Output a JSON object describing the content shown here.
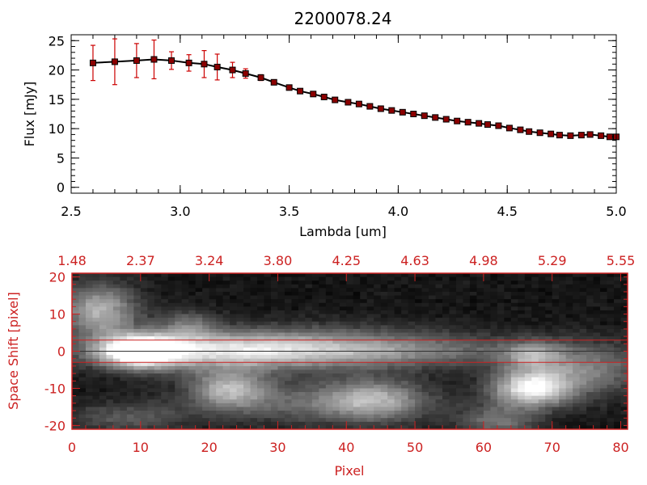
{
  "chart_data": [
    {
      "type": "line",
      "title": "2200078.24",
      "xlabel": "Lambda [um]",
      "ylabel": "Flux [mJy]",
      "xlim": [
        2.5,
        5.0
      ],
      "ylim": [
        -1,
        26
      ],
      "xticks": [
        "2.5",
        "3.0",
        "3.5",
        "4.0",
        "4.5",
        "5.0"
      ],
      "yticks": [
        "0",
        "5",
        "10",
        "15",
        "20",
        "25"
      ],
      "x": [
        2.6,
        2.7,
        2.8,
        2.88,
        2.96,
        3.04,
        3.11,
        3.17,
        3.24,
        3.3,
        3.37,
        3.43,
        3.5,
        3.55,
        3.61,
        3.66,
        3.71,
        3.77,
        3.82,
        3.87,
        3.92,
        3.97,
        4.02,
        4.07,
        4.12,
        4.17,
        4.22,
        4.27,
        4.32,
        4.37,
        4.41,
        4.46,
        4.51,
        4.56,
        4.6,
        4.65,
        4.7,
        4.74,
        4.79,
        4.84,
        4.88,
        4.93,
        4.97,
        5.0
      ],
      "y": [
        21.2,
        21.4,
        21.6,
        21.8,
        21.6,
        21.2,
        21.0,
        20.5,
        20.0,
        19.4,
        18.7,
        17.9,
        17.0,
        16.4,
        15.9,
        15.4,
        14.9,
        14.5,
        14.2,
        13.8,
        13.4,
        13.1,
        12.8,
        12.5,
        12.2,
        11.9,
        11.6,
        11.3,
        11.1,
        10.9,
        10.7,
        10.5,
        10.1,
        9.8,
        9.5,
        9.3,
        9.1,
        8.9,
        8.8,
        8.9,
        9.0,
        8.8,
        8.6,
        8.6
      ],
      "yerr": [
        3.0,
        3.9,
        2.9,
        3.3,
        1.5,
        1.4,
        2.3,
        2.2,
        1.3,
        0.8,
        0.5,
        0.3,
        0.2,
        0.2,
        0.2,
        0.2,
        0.2,
        0.2,
        0.2,
        0.2,
        0.2,
        0.2,
        0.2,
        0.2,
        0.2,
        0.2,
        0.2,
        0.2,
        0.2,
        0.2,
        0.2,
        0.2,
        0.2,
        0.2,
        0.2,
        0.2,
        0.2,
        0.2,
        0.2,
        0.3,
        0.4,
        0.4,
        0.4,
        0.4
      ],
      "line_color": "#000000",
      "error_color": "#cc0000",
      "marker_color": "#8b0000"
    },
    {
      "type": "heatmap",
      "xlabel": "Pixel",
      "ylabel": "Space Shift [pixel]",
      "xlim": [
        0,
        81
      ],
      "ylim": [
        -21,
        21
      ],
      "xticks": [
        "0",
        "10",
        "20",
        "30",
        "40",
        "50",
        "60",
        "70",
        "80"
      ],
      "yticks": [
        "-20",
        "-10",
        "0",
        "10",
        "20"
      ],
      "top_axis_ticks": [
        "1.48",
        "2.37",
        "3.24",
        "3.80",
        "4.25",
        "4.63",
        "4.98",
        "5.29",
        "5.55"
      ],
      "extraction_lines": [
        -3,
        0,
        3
      ],
      "accent_color": "#cc2222",
      "sources": [
        {
          "x": 10,
          "y": 0,
          "amp": 1.0,
          "sx": 4,
          "sy": 3.0
        },
        {
          "x": 20,
          "y": 0,
          "amp": 0.55,
          "sx": 12,
          "sy": 3.5
        },
        {
          "x": 35,
          "y": 1,
          "amp": 0.38,
          "sx": 14,
          "sy": 4
        },
        {
          "x": 50,
          "y": 0,
          "amp": 0.25,
          "sx": 14,
          "sy": 3
        },
        {
          "x": 4,
          "y": 11,
          "amp": 0.6,
          "sx": 4,
          "sy": 5
        },
        {
          "x": 23,
          "y": -10,
          "amp": 0.55,
          "sx": 4,
          "sy": 3.5
        },
        {
          "x": 44,
          "y": -13,
          "amp": 0.45,
          "sx": 5,
          "sy": 4
        },
        {
          "x": 67,
          "y": -10,
          "amp": 0.85,
          "sx": 4,
          "sy": 3.5
        },
        {
          "x": 67,
          "y": -1,
          "amp": 0.4,
          "sx": 3,
          "sy": 2.5
        },
        {
          "x": 75,
          "y": -5,
          "amp": 0.4,
          "sx": 6,
          "sy": 5
        },
        {
          "x": 62,
          "y": -19,
          "amp": 0.35,
          "sx": 4,
          "sy": 3
        },
        {
          "x": 35,
          "y": -14,
          "amp": 0.3,
          "sx": 12,
          "sy": 4
        },
        {
          "x": 8,
          "y": -18,
          "amp": 0.25,
          "sx": 6,
          "sy": 3
        },
        {
          "x": 17,
          "y": 7,
          "amp": 0.3,
          "sx": 3,
          "sy": 3
        }
      ]
    }
  ]
}
